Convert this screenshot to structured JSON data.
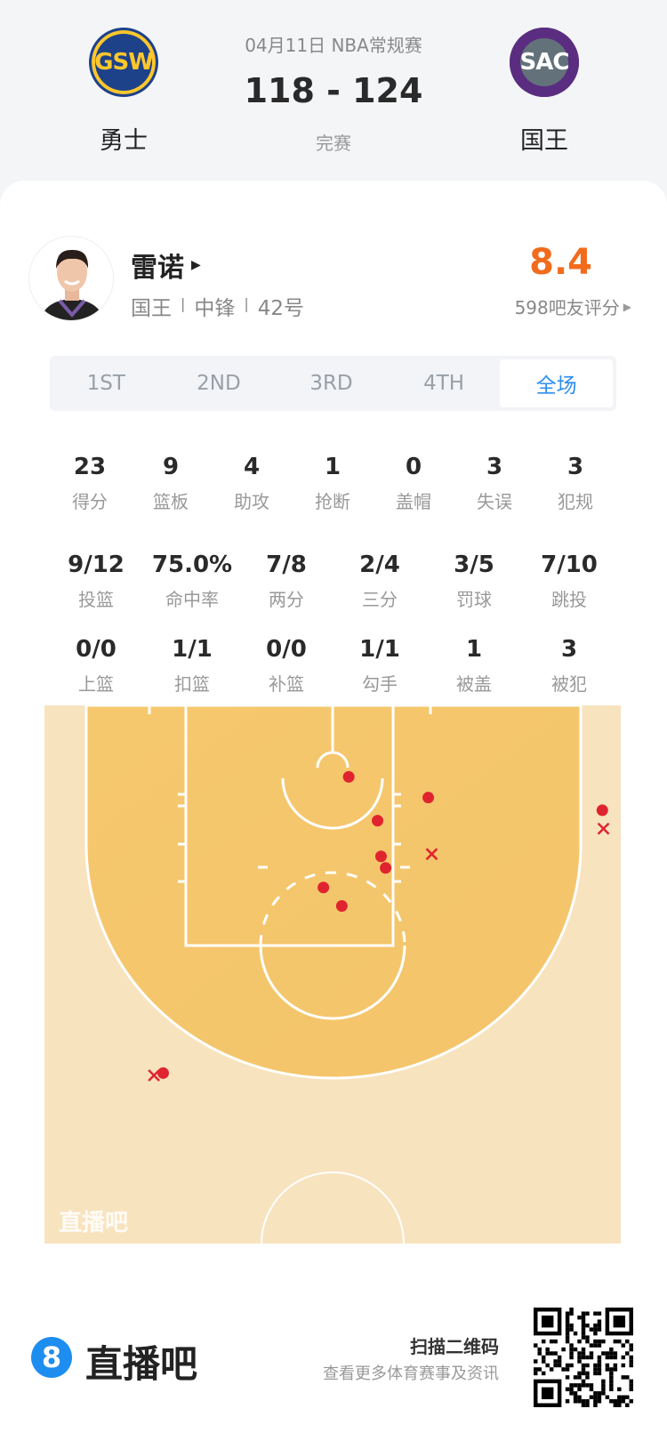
{
  "match": {
    "date_league": "04月11日 NBA常规赛",
    "score": "118 - 124",
    "status": "完赛",
    "home": {
      "abbr": "GSW",
      "name": "勇士"
    },
    "away": {
      "abbr": "SAC",
      "name": "国王"
    }
  },
  "player": {
    "name": "雷诺",
    "team": "国王",
    "position": "中锋",
    "number": "42号",
    "rating": "8.4",
    "rating_count": "598吧友评分",
    "separator": "|"
  },
  "tabs": [
    {
      "label": "1ST"
    },
    {
      "label": "2ND"
    },
    {
      "label": "3RD"
    },
    {
      "label": "4TH"
    },
    {
      "label": "全场",
      "active": true
    }
  ],
  "stats_row1": [
    {
      "v": "23",
      "l": "得分"
    },
    {
      "v": "9",
      "l": "篮板"
    },
    {
      "v": "4",
      "l": "助攻"
    },
    {
      "v": "1",
      "l": "抢断"
    },
    {
      "v": "0",
      "l": "盖帽"
    },
    {
      "v": "3",
      "l": "失误"
    },
    {
      "v": "3",
      "l": "犯规"
    }
  ],
  "stats_row2": [
    {
      "v": "9/12",
      "l": "投篮"
    },
    {
      "v": "75.0%",
      "l": "命中率"
    },
    {
      "v": "7/8",
      "l": "两分"
    },
    {
      "v": "2/4",
      "l": "三分"
    },
    {
      "v": "3/5",
      "l": "罚球"
    },
    {
      "v": "7/10",
      "l": "跳投"
    }
  ],
  "stats_row3": [
    {
      "v": "0/0",
      "l": "上篮"
    },
    {
      "v": "1/1",
      "l": "扣篮"
    },
    {
      "v": "0/0",
      "l": "补篮"
    },
    {
      "v": "1/1",
      "l": "勾手"
    },
    {
      "v": "1",
      "l": "被盖"
    },
    {
      "v": "3",
      "l": "被犯"
    }
  ],
  "shot_chart": {
    "watermark": "直播吧",
    "units": "feet (x from court center, y from baseline)",
    "made": [
      [
        1.4,
        6.2
      ],
      [
        8.3,
        8.0
      ],
      [
        3.9,
        10.0
      ],
      [
        4.2,
        13.1
      ],
      [
        4.6,
        14.1
      ],
      [
        -0.8,
        15.8
      ],
      [
        0.8,
        17.4
      ],
      [
        23.4,
        9.1
      ],
      [
        -14.7,
        31.9
      ]
    ],
    "missed": [
      [
        8.6,
        12.9
      ],
      [
        23.5,
        10.7
      ],
      [
        -15.5,
        32.1
      ]
    ],
    "colors": {
      "shot": "#e0242f",
      "paint_area": "#f5c66c",
      "outer": "#f8e3bf"
    }
  },
  "footer": {
    "brand": "直播吧",
    "brand_icon": "8",
    "scan": "扫描二维码",
    "more": "查看更多体育赛事及资讯"
  },
  "colors": {
    "accent": "#2e8ef0",
    "rating": "#f26b1d"
  }
}
